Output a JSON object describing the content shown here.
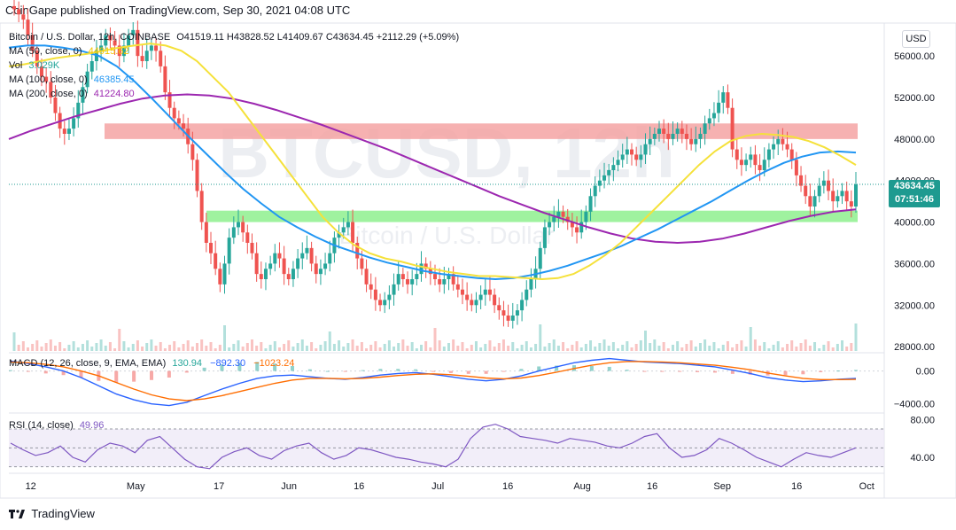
{
  "header": {
    "publisher": "CoinGape published on TradingView.com, Sep 30, 2021 04:08 UTC"
  },
  "footer": {
    "brand": "TradingView"
  },
  "watermark": "BTCUSD, 12h",
  "watermark_sub": "Bitcoin / U.S. Dollar",
  "currency_button": "USD",
  "legend": {
    "symbol": "Bitcoin / U.S. Dollar, 12h, COINBASE",
    "ohlc": "O41519.11 H43828.52 L41409.67 C43634.45 +2112.29 (+5.09%)",
    "ma50_label": "MA (50, close, 0)",
    "ma50_value": "44915.62",
    "vol_label": "Vol",
    "vol_value": "3.029K",
    "ma100_label": "MA (100, close, 0)",
    "ma100_value": "46385.45",
    "ma200_label": "MA (200, close, 0)",
    "ma200_value": "41224.80",
    "macd_label": "MACD (12, 26, close, 9, EMA, EMA)",
    "macd_hist": "130.94",
    "macd_line": "−892.30",
    "macd_signal": "−1023.24",
    "rsi_label": "RSI (14, close)",
    "rsi_value": "49.96"
  },
  "price_tag": {
    "price": "43634.45",
    "countdown": "07:51:46"
  },
  "colors": {
    "up": "#26a69a",
    "down": "#ef5350",
    "ma50": "#f5e13a",
    "ma100": "#2196f3",
    "ma200": "#9c27b0",
    "resistance_zone": "#f4a3a3",
    "support_zone": "#8ef08e",
    "macd_line": "#2962ff",
    "signal_line": "#ff6d00",
    "rsi_line": "#7e57c2"
  },
  "chart_data": [
    {
      "type": "candlestick",
      "title": "Bitcoin / U.S. Dollar, 12h, COINBASE",
      "y_ticks": [
        "56000.00",
        "52000.00",
        "48000.00",
        "44000.00",
        "40000.00",
        "36000.00",
        "32000.00",
        "28000.00"
      ],
      "x_ticks": [
        "12",
        "May",
        "17",
        "Jun",
        "16",
        "Jul",
        "16",
        "Aug",
        "16",
        "Sep",
        "16",
        "Oct"
      ],
      "ylim": [
        27500,
        59000
      ],
      "zones": [
        {
          "name": "resistance",
          "from": 48000,
          "to": 49500
        },
        {
          "name": "support",
          "from": 40000,
          "to": 41100
        }
      ],
      "close_series": [
        60500,
        60000,
        59500,
        58000,
        56500,
        55000,
        54000,
        53500,
        52000,
        50500,
        49000,
        48500,
        49000,
        50000,
        51500,
        53000,
        54500,
        55500,
        56500,
        57000,
        58000,
        57500,
        57000,
        56000,
        57000,
        58000,
        58500,
        56000,
        55500,
        56500,
        57000,
        56500,
        55000,
        52500,
        51000,
        50000,
        49500,
        49000,
        47500,
        46000,
        43000,
        40000,
        38000,
        37000,
        35500,
        34000,
        36000,
        38500,
        39500,
        40000,
        39000,
        38000,
        37000,
        35000,
        34500,
        35500,
        36000,
        37000,
        36500,
        35000,
        34500,
        35500,
        36500,
        37000,
        37500,
        36000,
        35000,
        35500,
        36000,
        37000,
        38500,
        39000,
        39500,
        40000,
        38000,
        36500,
        35500,
        34000,
        33500,
        32500,
        32000,
        32500,
        33000,
        34000,
        35000,
        34500,
        34000,
        34500,
        35000,
        36000,
        35500,
        35000,
        34500,
        34000,
        34500,
        35000,
        34000,
        33500,
        33000,
        32500,
        32000,
        32500,
        33000,
        33500,
        33000,
        32000,
        31500,
        31000,
        30500,
        31000,
        31500,
        32500,
        33500,
        34500,
        35500,
        37500,
        39500,
        40000,
        40500,
        41000,
        40500,
        40000,
        39500,
        39000,
        40000,
        41000,
        42500,
        43500,
        44000,
        44500,
        45000,
        45500,
        46000,
        46500,
        47000,
        46500,
        46000,
        46500,
        47500,
        48000,
        48500,
        49000,
        48500,
        48000,
        48500,
        49000,
        48500,
        48000,
        47500,
        48000,
        48500,
        49500,
        50000,
        50500,
        51500,
        52500,
        51000,
        47000,
        46000,
        45500,
        46000,
        46500,
        45500,
        45000,
        46000,
        47000,
        47500,
        48000,
        47500,
        47000,
        46000,
        44500,
        43500,
        42500,
        41500,
        42500,
        43500,
        44000,
        43000,
        42000,
        42500,
        43000,
        42000,
        41500,
        43634
      ],
      "ma50_series": [
        55000,
        55200,
        55500,
        55800,
        56000,
        56200,
        56500,
        56800,
        57000,
        57200,
        57000,
        56500,
        55500,
        54000,
        52500,
        50500,
        48500,
        46500,
        44500,
        42500,
        40500,
        39000,
        37800,
        37000,
        36500,
        36200,
        35800,
        35500,
        35200,
        35000,
        34800,
        34800,
        34700,
        34600,
        34500,
        34600,
        35000,
        35800,
        36800,
        38000,
        39500,
        41000,
        42500,
        44000,
        45500,
        46800,
        47800,
        48300,
        48500,
        48400,
        48200,
        47800,
        47200,
        46400,
        45500
      ],
      "ma100_series": [
        56800,
        57000,
        57000,
        56800,
        56500,
        56000,
        55000,
        53500,
        51800,
        50000,
        48200,
        46500,
        44800,
        43200,
        41800,
        40500,
        39500,
        38600,
        37800,
        37200,
        36600,
        36100,
        35700,
        35300,
        35000,
        34800,
        34600,
        34500,
        34600,
        34900,
        35300,
        35800,
        36400,
        37000,
        37700,
        38500,
        39300,
        40200,
        41100,
        42000,
        43000,
        44000,
        44900,
        45700,
        46300,
        46700,
        46800,
        46700
      ],
      "ma200_series": [
        48000,
        48800,
        49500,
        50200,
        50800,
        51400,
        51900,
        52200,
        52300,
        52200,
        51900,
        51400,
        50800,
        50100,
        49400,
        48600,
        47800,
        47000,
        46100,
        45200,
        44300,
        43400,
        42500,
        41700,
        40900,
        40200,
        39500,
        38900,
        38400,
        38100,
        38000,
        38100,
        38400,
        38900,
        39500,
        40100,
        40600,
        41000,
        41224
      ],
      "volume_levels": "low with spikes"
    },
    {
      "type": "line",
      "title": "MACD (12, 26, close, 9, EMA, EMA)",
      "y_ticks": [
        "0.00",
        "−4000.00"
      ],
      "ylim": [
        -5000,
        2000
      ],
      "macd_series": [
        1200,
        900,
        500,
        0,
        -800,
        -1800,
        -2800,
        -3500,
        -4000,
        -4200,
        -3800,
        -3000,
        -2200,
        -1500,
        -900,
        -600,
        -500,
        -700,
        -900,
        -1000,
        -800,
        -500,
        -300,
        -200,
        -400,
        -700,
        -1000,
        -1200,
        -1000,
        -600,
        0,
        500,
        1000,
        1300,
        1500,
        1300,
        1100,
        1000,
        900,
        700,
        500,
        100,
        -300,
        -800,
        -1100,
        -1300,
        -1200,
        -1000,
        -900
      ],
      "signal_series": [
        1100,
        1000,
        800,
        500,
        0,
        -600,
        -1400,
        -2200,
        -2900,
        -3400,
        -3600,
        -3400,
        -3000,
        -2500,
        -2000,
        -1500,
        -1100,
        -900,
        -900,
        -950,
        -900,
        -750,
        -550,
        -400,
        -350,
        -450,
        -650,
        -850,
        -950,
        -850,
        -550,
        -150,
        300,
        700,
        1000,
        1150,
        1150,
        1100,
        1000,
        850,
        700,
        450,
        150,
        -250,
        -600,
        -900,
        -1050,
        -1050,
        -1023
      ]
    },
    {
      "type": "line",
      "title": "RSI (14, close)",
      "y_ticks": [
        "80.00",
        "40.00"
      ],
      "ylim": [
        25,
        85
      ],
      "rsi_series": [
        55,
        48,
        42,
        45,
        52,
        40,
        35,
        48,
        55,
        52,
        45,
        58,
        62,
        50,
        38,
        30,
        28,
        40,
        46,
        50,
        42,
        38,
        47,
        52,
        55,
        45,
        38,
        42,
        50,
        48,
        44,
        40,
        38,
        35,
        33,
        30,
        38,
        60,
        72,
        75,
        70,
        62,
        60,
        58,
        55,
        60,
        58,
        56,
        52,
        50,
        55,
        62,
        65,
        50,
        40,
        42,
        48,
        60,
        55,
        48,
        40,
        35,
        30,
        38,
        45,
        42,
        40,
        45,
        50
      ]
    }
  ]
}
